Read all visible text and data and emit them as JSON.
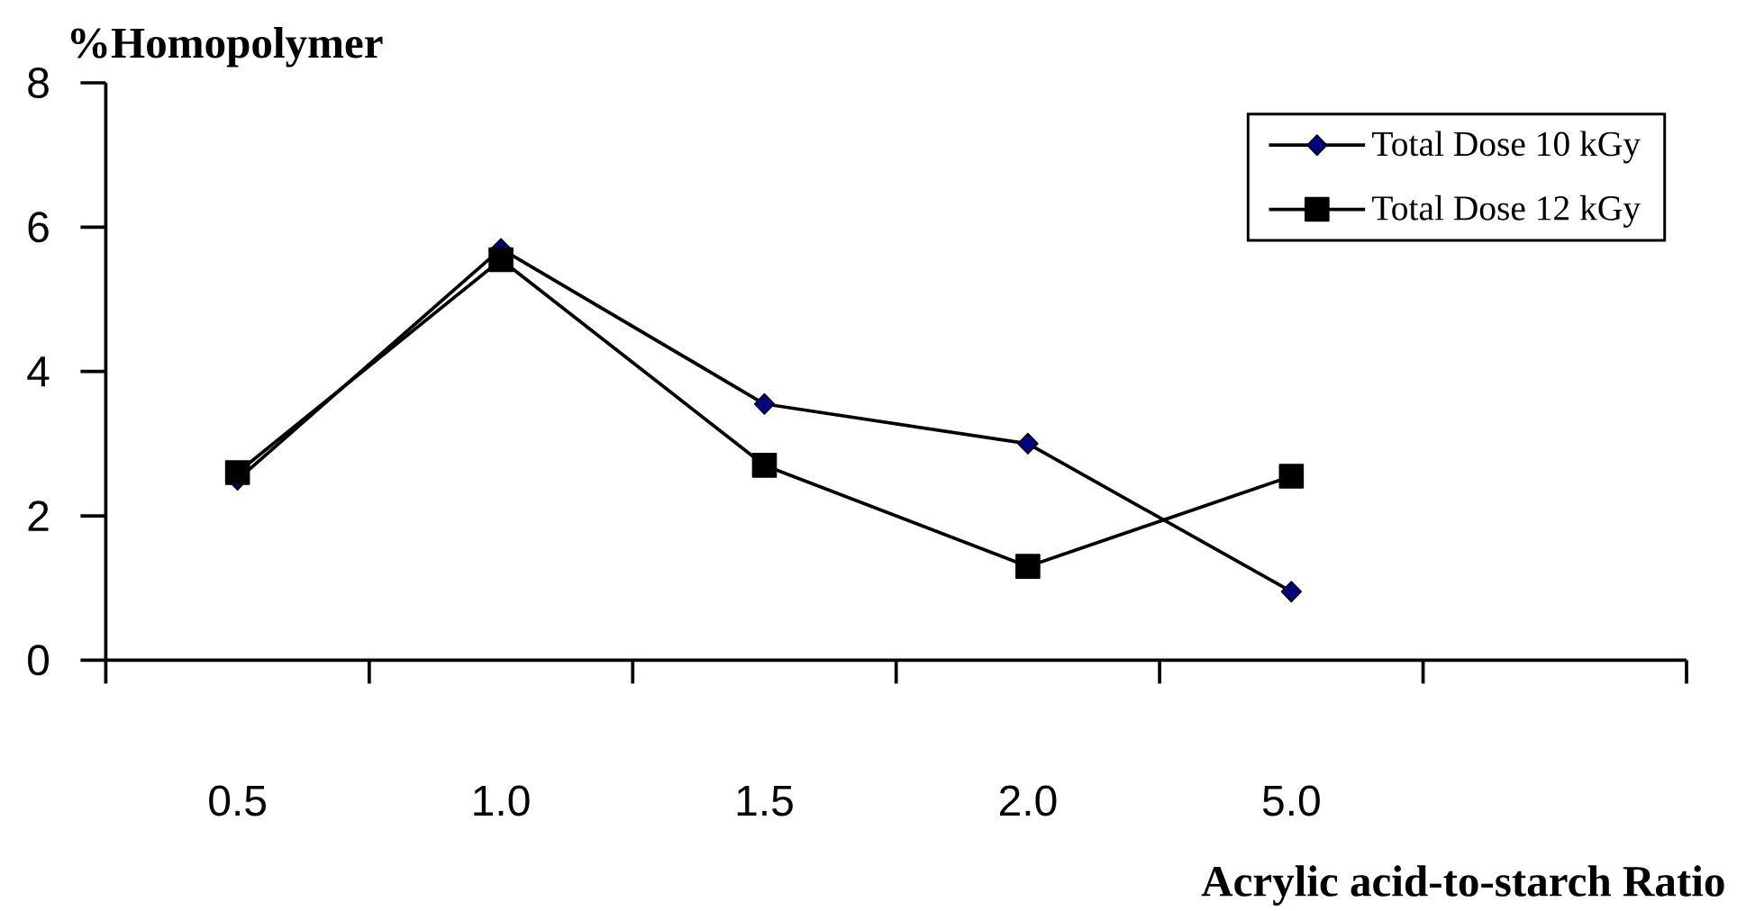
{
  "chart_data": {
    "type": "line",
    "ylabel": "%Homopolymer",
    "xlabel": "Acrylic acid-to-starch Ratio",
    "categories": [
      "0.5",
      "1.0",
      "1.5",
      "2.0",
      "5.0",
      null
    ],
    "series": [
      {
        "name": "Total Dose 10 kGy",
        "color": "#000080",
        "marker": "diamond",
        "values": [
          2.5,
          5.7,
          3.55,
          3.0,
          0.95,
          null
        ]
      },
      {
        "name": "Total Dose 12 kGy",
        "color": "#000000",
        "marker": "square",
        "values": [
          2.6,
          5.55,
          2.7,
          1.3,
          2.55,
          null
        ]
      }
    ],
    "ylim": [
      0,
      8
    ],
    "yticks": [
      0,
      2,
      4,
      6,
      8
    ],
    "legend": "top right",
    "line_style": "solid"
  }
}
